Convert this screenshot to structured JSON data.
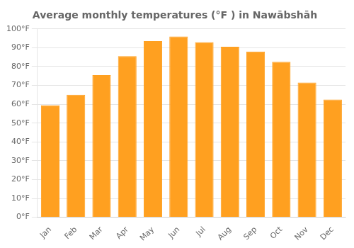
{
  "chart_data": {
    "type": "bar",
    "title": "Average monthly temperatures (°F ) in Nawābshāh",
    "categories": [
      "Jan",
      "Feb",
      "Mar",
      "Apr",
      "May",
      "Jun",
      "Jul",
      "Aug",
      "Sep",
      "Oct",
      "Nov",
      "Dec"
    ],
    "values": [
      59.5,
      65.0,
      75.5,
      85.5,
      93.5,
      96.0,
      93.0,
      90.5,
      88.0,
      82.5,
      71.5,
      62.5
    ],
    "color": "#FFA020",
    "ylim": [
      0,
      100
    ],
    "yticks": [
      {
        "value": 0,
        "label": "0°F"
      },
      {
        "value": 10,
        "label": "10°F"
      },
      {
        "value": 20,
        "label": "20°F"
      },
      {
        "value": 30,
        "label": "30°F"
      },
      {
        "value": 40,
        "label": "40°F"
      },
      {
        "value": 50,
        "label": "50°F"
      },
      {
        "value": 60,
        "label": "60°F"
      },
      {
        "value": 70,
        "label": "70°F"
      },
      {
        "value": 80,
        "label": "80°F"
      },
      {
        "value": 90,
        "label": "90°F"
      },
      {
        "value": 100,
        "label": "100°F"
      }
    ],
    "grid": true
  }
}
